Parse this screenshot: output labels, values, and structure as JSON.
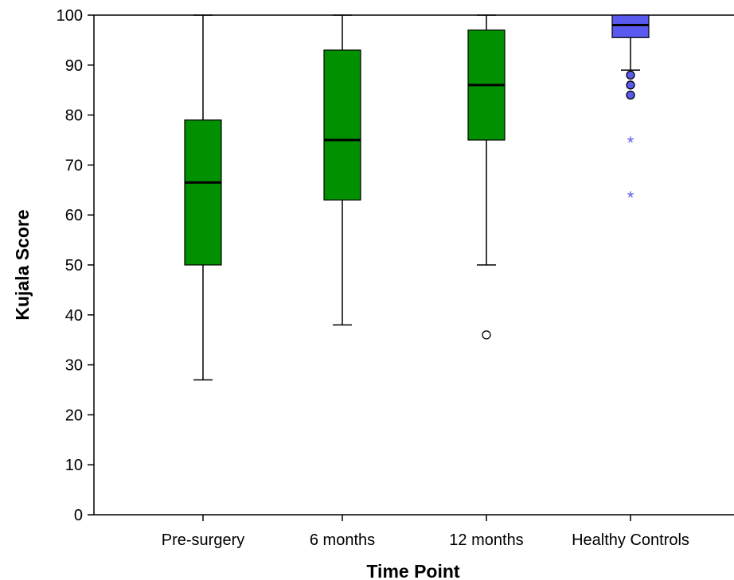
{
  "chart_data": {
    "type": "box",
    "xlabel": "Time Point",
    "ylabel": "Kujala Score",
    "ylim": [
      0,
      100
    ],
    "yticks": [
      0,
      10,
      20,
      30,
      40,
      50,
      60,
      70,
      80,
      90,
      100
    ],
    "grid": false,
    "categories": [
      "Pre-surgery",
      "6 months",
      "12 months",
      "Healthy Controls"
    ],
    "boxes": [
      {
        "category": "Pre-surgery",
        "whisker_low": 27,
        "q1": 50,
        "median": 66.5,
        "q3": 79,
        "whisker_high": 100,
        "outliers": [],
        "extremes": [],
        "color": "#009000"
      },
      {
        "category": "6 months",
        "whisker_low": 38,
        "q1": 63,
        "median": 75,
        "q3": 93,
        "whisker_high": 100,
        "outliers": [],
        "extremes": [],
        "color": "#009000"
      },
      {
        "category": "12 months",
        "whisker_low": 50,
        "q1": 75,
        "median": 86,
        "q3": 97,
        "whisker_high": 100,
        "outliers": [
          36
        ],
        "extremes": [],
        "color": "#009000"
      },
      {
        "category": "Healthy Controls",
        "whisker_low": 89,
        "q1": 95.5,
        "median": 98,
        "q3": 100,
        "whisker_high": 100,
        "outliers": [
          84,
          86,
          88
        ],
        "extremes": [
          64,
          75
        ],
        "color": "#5a5af0"
      }
    ]
  }
}
